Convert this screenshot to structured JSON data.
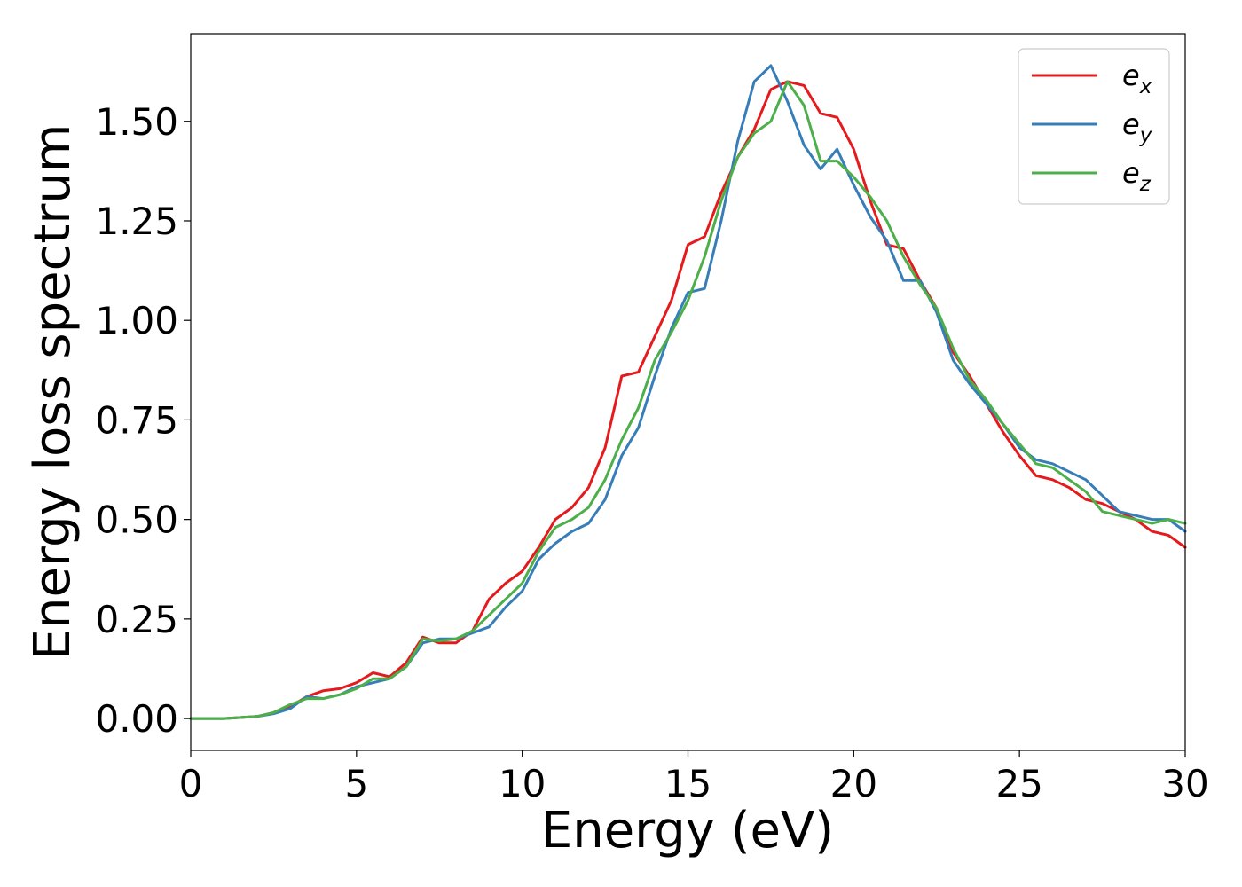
{
  "chart_data": {
    "type": "line",
    "xlabel": "Energy (eV)",
    "ylabel": "Energy loss spectrum",
    "xlim": [
      0,
      30
    ],
    "ylim": [
      -0.08,
      1.72
    ],
    "xticks": [
      0,
      5,
      10,
      15,
      20,
      25,
      30
    ],
    "xtick_labels": [
      "0",
      "5",
      "10",
      "15",
      "20",
      "25",
      "30"
    ],
    "yticks": [
      0,
      0.25,
      0.5,
      0.75,
      1.0,
      1.25,
      1.5
    ],
    "ytick_labels": [
      "0.00",
      "0.25",
      "0.50",
      "0.75",
      "1.00",
      "1.25",
      "1.50"
    ],
    "grid": false,
    "legend_position": "top-right",
    "x": [
      0,
      1,
      2,
      2.5,
      3,
      3.5,
      4,
      4.5,
      5,
      5.5,
      6,
      6.5,
      7,
      7.5,
      8,
      8.5,
      9,
      9.5,
      10,
      10.5,
      11,
      11.5,
      12,
      12.5,
      13,
      13.5,
      14,
      14.5,
      15,
      15.5,
      16,
      16.5,
      17,
      17.5,
      18,
      18.5,
      19,
      19.5,
      20,
      20.5,
      21,
      21.5,
      22,
      22.5,
      23,
      23.5,
      24,
      24.5,
      25,
      25.5,
      26,
      26.5,
      27,
      27.5,
      28,
      28.5,
      29,
      29.5,
      30
    ],
    "series": [
      {
        "name": "e",
        "subscript": "x",
        "color": "#e41a1c",
        "values": [
          0.0,
          0.0,
          0.005,
          0.015,
          0.03,
          0.055,
          0.07,
          0.075,
          0.09,
          0.115,
          0.105,
          0.14,
          0.205,
          0.19,
          0.19,
          0.22,
          0.3,
          0.34,
          0.37,
          0.43,
          0.5,
          0.53,
          0.58,
          0.68,
          0.86,
          0.87,
          0.96,
          1.05,
          1.19,
          1.21,
          1.32,
          1.41,
          1.48,
          1.58,
          1.6,
          1.59,
          1.52,
          1.51,
          1.43,
          1.3,
          1.19,
          1.18,
          1.1,
          1.03,
          0.92,
          0.86,
          0.79,
          0.72,
          0.66,
          0.61,
          0.6,
          0.58,
          0.55,
          0.54,
          0.52,
          0.5,
          0.47,
          0.46,
          0.43
        ]
      },
      {
        "name": "e",
        "subscript": "y",
        "color": "#377eb8",
        "values": [
          0.0,
          0.0,
          0.005,
          0.012,
          0.025,
          0.055,
          0.05,
          0.06,
          0.08,
          0.09,
          0.1,
          0.13,
          0.19,
          0.2,
          0.2,
          0.215,
          0.23,
          0.28,
          0.32,
          0.4,
          0.44,
          0.47,
          0.49,
          0.55,
          0.66,
          0.73,
          0.86,
          0.98,
          1.07,
          1.08,
          1.25,
          1.45,
          1.6,
          1.64,
          1.55,
          1.44,
          1.38,
          1.43,
          1.34,
          1.26,
          1.2,
          1.1,
          1.1,
          1.02,
          0.9,
          0.84,
          0.79,
          0.74,
          0.68,
          0.65,
          0.64,
          0.62,
          0.6,
          0.56,
          0.52,
          0.51,
          0.5,
          0.5,
          0.47
        ]
      },
      {
        "name": "e",
        "subscript": "z",
        "color": "#4daf4a",
        "values": [
          0.0,
          0.0,
          0.005,
          0.015,
          0.035,
          0.05,
          0.05,
          0.06,
          0.075,
          0.1,
          0.1,
          0.13,
          0.2,
          0.195,
          0.2,
          0.22,
          0.26,
          0.3,
          0.34,
          0.42,
          0.48,
          0.5,
          0.53,
          0.6,
          0.7,
          0.78,
          0.9,
          0.97,
          1.05,
          1.16,
          1.3,
          1.41,
          1.47,
          1.5,
          1.6,
          1.54,
          1.4,
          1.4,
          1.36,
          1.31,
          1.25,
          1.16,
          1.09,
          1.03,
          0.93,
          0.85,
          0.8,
          0.74,
          0.69,
          0.64,
          0.63,
          0.6,
          0.57,
          0.52,
          0.51,
          0.5,
          0.49,
          0.5,
          0.49
        ]
      }
    ]
  }
}
